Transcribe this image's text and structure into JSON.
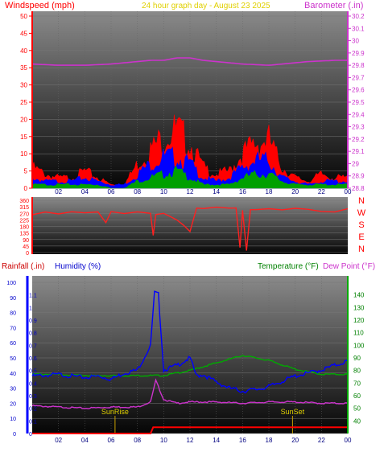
{
  "header": {
    "wind_label": "Windspeed (mph)",
    "title": "24 hour graph day - August 23 2025",
    "baro_label": "Barometer (.in)"
  },
  "bottom_header": {
    "rain_label": "Rainfall (.in)",
    "hum_label": "Humidity (%)",
    "temp_label": "Temperature (°F)",
    "dew_label": "Dew Point (°F)"
  },
  "markers": {
    "sunrise": "SunRise",
    "sunset": "SunSet"
  },
  "colors": {
    "wind": "#ff0000",
    "wind_mid": "#0000ff",
    "wind_low": "#00a000",
    "baro": "#cc33cc",
    "dir": "#ff2020",
    "rain": "#ff0000",
    "humidity": "#0000ff",
    "temperature": "#00aa00",
    "dewpoint": "#cc33cc",
    "sun_marker": "#c8a000"
  },
  "chart_data": [
    {
      "type": "area",
      "title": "24 hour graph day - August 23 2025",
      "xlabel": "",
      "x_ticks": [
        "02",
        "04",
        "06",
        "08",
        "10",
        "12",
        "14",
        "16",
        "18",
        "20",
        "22",
        "00"
      ],
      "left_axis": {
        "label": "Windspeed (mph)",
        "range": [
          0,
          50
        ],
        "ticks": [
          0,
          5,
          10,
          15,
          20,
          25,
          30,
          35,
          40,
          45,
          50
        ]
      },
      "right_axis": {
        "label": "Barometer (.in)",
        "range": [
          28.8,
          30.2
        ],
        "ticks": [
          "28.8",
          "28.9",
          "29",
          "29.1",
          "29.2",
          "29.3",
          "29.4",
          "29.5",
          "29.6",
          "29.7",
          "29.8",
          "29.9",
          "30",
          "30.1",
          "30.2"
        ]
      },
      "series": [
        {
          "name": "Windspeed (mph)",
          "axis": "left",
          "hours": [
            0,
            1,
            2,
            3,
            4,
            5,
            6,
            7,
            8,
            9,
            10,
            11,
            12,
            13,
            14,
            15,
            16,
            17,
            18,
            19,
            20,
            21,
            22,
            23,
            24
          ],
          "gust": [
            6,
            4,
            3,
            3,
            5,
            3,
            1,
            1,
            7,
            11,
            15,
            17,
            13,
            6,
            4,
            5,
            10,
            13,
            14,
            6,
            3,
            2,
            4,
            3,
            3
          ],
          "mid": [
            3,
            2,
            2,
            2,
            3,
            2,
            1,
            1,
            4,
            7,
            9,
            9,
            7,
            3,
            2,
            3,
            6,
            8,
            8,
            3,
            2,
            1,
            2,
            2,
            2
          ],
          "low": [
            1,
            1,
            1,
            1,
            1,
            1,
            0,
            0,
            2,
            3,
            4,
            5,
            3,
            1,
            1,
            1,
            3,
            4,
            4,
            2,
            1,
            1,
            1,
            1,
            1
          ]
        },
        {
          "name": "Barometer (.in)",
          "axis": "right",
          "hours": [
            0,
            1,
            2,
            3,
            4,
            5,
            6,
            7,
            8,
            9,
            10,
            11,
            12,
            13,
            14,
            15,
            16,
            17,
            18,
            19,
            20,
            21,
            22,
            23,
            24
          ],
          "values": [
            29.81,
            29.805,
            29.8,
            29.8,
            29.8,
            29.805,
            29.81,
            29.82,
            29.83,
            29.84,
            29.84,
            29.86,
            29.86,
            29.84,
            29.83,
            29.82,
            29.81,
            29.805,
            29.8,
            29.81,
            29.82,
            29.83,
            29.835,
            29.84,
            29.84
          ]
        }
      ]
    },
    {
      "type": "line",
      "title": "Wind direction",
      "y_ticks": [
        "0",
        "45",
        "90",
        "135",
        "180",
        "225",
        "270",
        "315",
        "360"
      ],
      "compass": [
        "N",
        "W",
        "S",
        "E",
        "N"
      ],
      "series": [
        {
          "name": "Wind direction",
          "hours": [
            0,
            1,
            2,
            3,
            4,
            5,
            5.6,
            6,
            7,
            8,
            9,
            9.2,
            9.4,
            10,
            10.5,
            11,
            11.5,
            12,
            12.5,
            13,
            14,
            15,
            15.5,
            15.8,
            16,
            16.3,
            16.6,
            17,
            18,
            19,
            20,
            21,
            22,
            23,
            24
          ],
          "values": [
            260,
            270,
            265,
            275,
            270,
            275,
            200,
            280,
            275,
            285,
            270,
            120,
            270,
            270,
            250,
            220,
            180,
            140,
            300,
            300,
            305,
            300,
            300,
            40,
            300,
            20,
            300,
            305,
            310,
            300,
            295,
            290,
            280,
            275,
            300
          ]
        }
      ]
    },
    {
      "type": "line",
      "title": "",
      "x_ticks": [
        "02",
        "04",
        "06",
        "08",
        "10",
        "12",
        "14",
        "16",
        "18",
        "20",
        "22",
        "00"
      ],
      "left_axis_rain": {
        "label": "Rainfall (.in)",
        "range": [
          0,
          1.2
        ],
        "ticks": [
          "0",
          "0.1",
          "0.2",
          "0.3",
          "0.4",
          "0.5",
          "0.6",
          "0.7",
          "0.8",
          "0.9",
          "1",
          "1.1"
        ]
      },
      "left_axis_humidity": {
        "label": "Humidity (%)",
        "range": [
          0,
          100
        ],
        "ticks": [
          "0",
          "10",
          "20",
          "30",
          "40",
          "50",
          "60",
          "70",
          "80",
          "90",
          "100"
        ]
      },
      "right_axis": {
        "label": "Temperature (°F)",
        "range": [
          30,
          150
        ],
        "ticks": [
          "40",
          "50",
          "60",
          "70",
          "80",
          "90",
          "100",
          "110",
          "120",
          "130",
          "140"
        ]
      },
      "series": [
        {
          "name": "Temperature (°F)",
          "axis": "right",
          "hours": [
            0,
            2,
            4,
            6,
            8,
            10,
            12,
            14,
            16,
            18,
            20,
            22,
            24
          ],
          "values": [
            77,
            77,
            76,
            76,
            76,
            76,
            80,
            86,
            92,
            88,
            81,
            77,
            77
          ]
        },
        {
          "name": "Humidity (%)",
          "axis": "humidity",
          "hours": [
            0,
            2,
            4,
            5,
            6,
            7,
            8,
            9,
            9.3,
            9.6,
            10,
            11,
            12,
            12.5,
            13,
            14,
            15,
            16,
            17,
            18,
            20,
            22,
            24
          ],
          "values": [
            38,
            39,
            37,
            38,
            36,
            40,
            42,
            58,
            93,
            92,
            42,
            45,
            50,
            38,
            39,
            34,
            30,
            28,
            29,
            31,
            38,
            42,
            48
          ]
        },
        {
          "name": "Dew Point (°F)",
          "axis": "right",
          "hours": [
            0,
            2,
            4,
            6,
            8,
            9,
            9.4,
            10,
            11,
            12,
            14,
            16,
            18,
            20,
            22,
            24
          ],
          "values": [
            52,
            51,
            50,
            51,
            51,
            55,
            72,
            57,
            54,
            55,
            55,
            54,
            55,
            55,
            54,
            54
          ]
        },
        {
          "name": "Rainfall (.in)",
          "axis": "rain",
          "hours": [
            0,
            9,
            9.2,
            24
          ],
          "values": [
            0,
            0,
            0.05,
            0.05
          ]
        }
      ],
      "annotations": [
        {
          "label": "SunRise",
          "hour": 6.3
        },
        {
          "label": "SunSet",
          "hour": 19.8
        }
      ]
    }
  ]
}
